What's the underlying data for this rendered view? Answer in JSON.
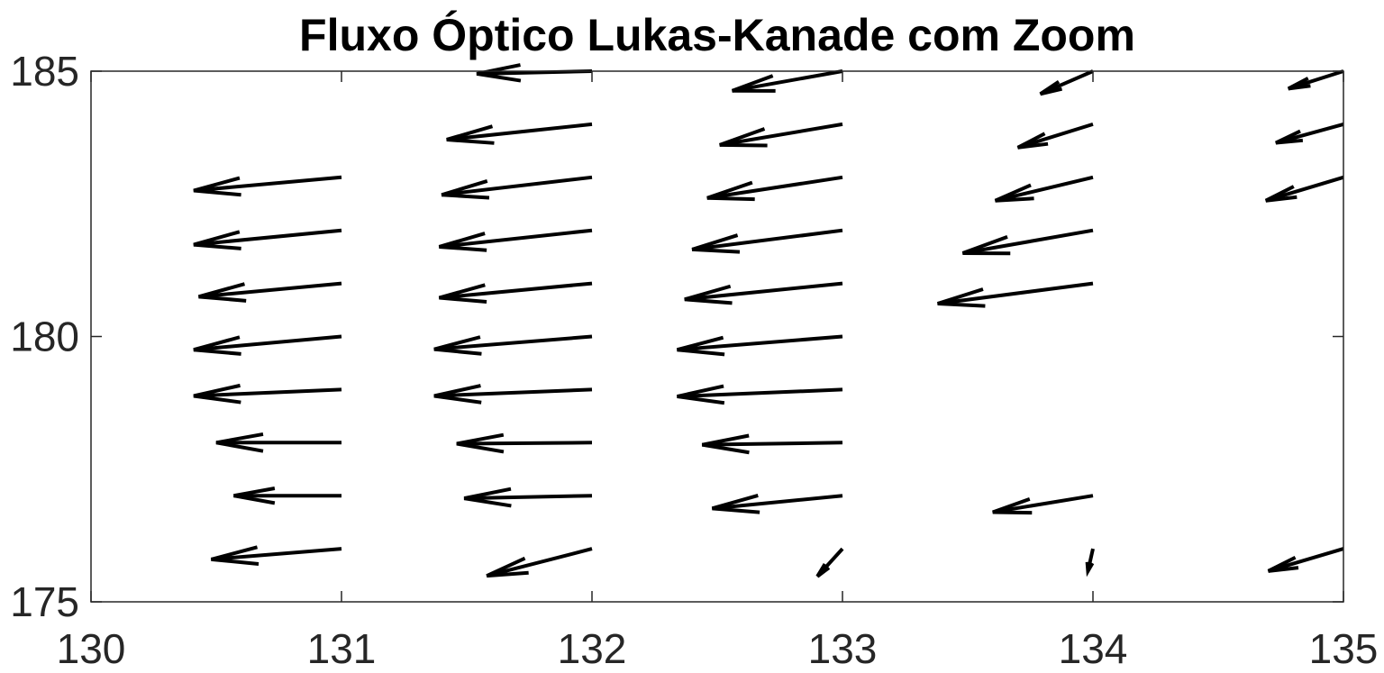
{
  "chart_data": {
    "type": "quiver",
    "title": "Fluxo Óptico Lukas-Kanade com Zoom",
    "xlabel": "",
    "ylabel": "",
    "xlim": [
      130,
      135
    ],
    "ylim": [
      175,
      185
    ],
    "xticks": [
      130,
      131,
      132,
      133,
      134,
      135
    ],
    "yticks": [
      175,
      180,
      185
    ],
    "xtick_labels": [
      "130",
      "131",
      "132",
      "133",
      "134",
      "135"
    ],
    "ytick_labels": [
      "175",
      "180",
      "185"
    ],
    "grid": false,
    "arrows": [
      {
        "x": 131,
        "y": 183,
        "u": -0.59,
        "v": -0.25
      },
      {
        "x": 131,
        "y": 182,
        "u": -0.59,
        "v": -0.27
      },
      {
        "x": 131,
        "y": 181,
        "u": -0.57,
        "v": -0.25
      },
      {
        "x": 131,
        "y": 180,
        "u": -0.59,
        "v": -0.25
      },
      {
        "x": 131,
        "y": 179,
        "u": -0.59,
        "v": -0.12
      },
      {
        "x": 131,
        "y": 178,
        "u": -0.5,
        "v": 0.0
      },
      {
        "x": 131,
        "y": 177,
        "u": -0.43,
        "v": 0.0
      },
      {
        "x": 131,
        "y": 176,
        "u": -0.52,
        "v": -0.2
      },
      {
        "x": 132,
        "y": 185,
        "u": -0.46,
        "v": -0.05
      },
      {
        "x": 132,
        "y": 184,
        "u": -0.58,
        "v": -0.29
      },
      {
        "x": 132,
        "y": 183,
        "u": -0.6,
        "v": -0.33
      },
      {
        "x": 132,
        "y": 182,
        "u": -0.61,
        "v": -0.31
      },
      {
        "x": 132,
        "y": 181,
        "u": -0.61,
        "v": -0.27
      },
      {
        "x": 132,
        "y": 180,
        "u": -0.63,
        "v": -0.24
      },
      {
        "x": 132,
        "y": 179,
        "u": -0.63,
        "v": -0.12
      },
      {
        "x": 132,
        "y": 178,
        "u": -0.54,
        "v": -0.02
      },
      {
        "x": 132,
        "y": 177,
        "u": -0.51,
        "v": -0.05
      },
      {
        "x": 132,
        "y": 176,
        "u": -0.42,
        "v": -0.51
      },
      {
        "x": 133,
        "y": 185,
        "u": -0.44,
        "v": -0.37
      },
      {
        "x": 133,
        "y": 184,
        "u": -0.49,
        "v": -0.39
      },
      {
        "x": 133,
        "y": 183,
        "u": -0.54,
        "v": -0.39
      },
      {
        "x": 133,
        "y": 182,
        "u": -0.6,
        "v": -0.36
      },
      {
        "x": 133,
        "y": 181,
        "u": -0.63,
        "v": -0.3
      },
      {
        "x": 133,
        "y": 180,
        "u": -0.66,
        "v": -0.25
      },
      {
        "x": 133,
        "y": 179,
        "u": -0.66,
        "v": -0.13
      },
      {
        "x": 133,
        "y": 178,
        "u": -0.56,
        "v": -0.04
      },
      {
        "x": 133,
        "y": 177,
        "u": -0.52,
        "v": -0.24
      },
      {
        "x": 133,
        "y": 176,
        "u": -0.1,
        "v": -0.52
      },
      {
        "x": 134,
        "y": 185,
        "u": -0.21,
        "v": -0.43
      },
      {
        "x": 134,
        "y": 184,
        "u": -0.3,
        "v": -0.44
      },
      {
        "x": 134,
        "y": 183,
        "u": -0.39,
        "v": -0.44
      },
      {
        "x": 134,
        "y": 182,
        "u": -0.52,
        "v": -0.43
      },
      {
        "x": 134,
        "y": 181,
        "u": -0.62,
        "v": -0.38
      },
      {
        "x": 134,
        "y": 177,
        "u": -0.4,
        "v": -0.31
      },
      {
        "x": 134,
        "y": 176,
        "u": -0.02,
        "v": -0.42
      },
      {
        "x": 135,
        "y": 185,
        "u": -0.22,
        "v": -0.33
      },
      {
        "x": 135,
        "y": 184,
        "u": -0.27,
        "v": -0.35
      },
      {
        "x": 135,
        "y": 183,
        "u": -0.31,
        "v": -0.44
      },
      {
        "x": 135,
        "y": 176,
        "u": -0.3,
        "v": -0.42
      }
    ]
  }
}
